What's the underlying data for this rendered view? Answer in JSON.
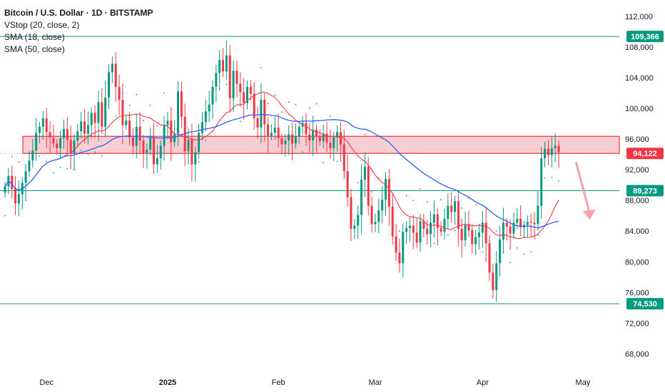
{
  "header": {
    "title": "Bitcoin / U.S. Dollar · 1D · BITSTAMP",
    "indicators": [
      "VStop (20, close, 2)",
      "SMA (18, close)",
      "SMA (50, close)"
    ]
  },
  "colors": {
    "up": "#089981",
    "down": "#f23645",
    "sma18": "#f23645",
    "sma50": "#2962ff",
    "vstop": "#089981",
    "vstop_down": "#f23645",
    "level_line": "#089981",
    "zone_fill": "#f7c6cb",
    "zone_border": "#e8323c",
    "grid_text": "#131722"
  },
  "chart_data": {
    "type": "candlestick",
    "y_axis": {
      "min": 66000,
      "max": 113000,
      "ticks": [
        "112,000",
        "108,000",
        "104,000",
        "100,000",
        "96,000",
        "92,000",
        "88,000",
        "84,000",
        "80,000",
        "76,000",
        "72,000",
        "68,000"
      ],
      "tick_values": [
        112000,
        108000,
        104000,
        100000,
        96000,
        92000,
        88000,
        84000,
        80000,
        76000,
        72000,
        68000
      ]
    },
    "x_axis": {
      "labels": [
        "Dec",
        "2025",
        "Feb",
        "Mar",
        "Apr",
        "May"
      ],
      "label_index": [
        12,
        47,
        79,
        107,
        138,
        167
      ]
    },
    "levels": [
      {
        "value": 109366,
        "label": "109,366"
      },
      {
        "value": 89273,
        "label": "89,273"
      },
      {
        "value": 74530,
        "label": "74,530"
      }
    ],
    "price_tag": {
      "value": 94122,
      "label": "94,122"
    },
    "zone": {
      "low": 94122,
      "high": 96350
    },
    "projection_arrow": {
      "from_index": 165,
      "from_value": 93000,
      "to_index": 169,
      "to_value": 85500
    },
    "closes": [
      89800,
      91200,
      89500,
      87600,
      88800,
      90300,
      91800,
      93200,
      94500,
      96800,
      97600,
      98700,
      96900,
      96200,
      95400,
      94800,
      96100,
      97300,
      95900,
      94100,
      95800,
      97000,
      98300,
      96700,
      97800,
      99400,
      98100,
      100800,
      97600,
      101400,
      104700,
      105800,
      102800,
      101100,
      97800,
      98400,
      96200,
      95100,
      97600,
      95800,
      94200,
      94600,
      96200,
      92700,
      93500,
      95100,
      97800,
      98400,
      95600,
      96700,
      102200,
      98900,
      94400,
      95900,
      92700,
      94300,
      96800,
      98200,
      99600,
      100500,
      102800,
      104600,
      106300,
      104800,
      106900,
      101300,
      104900,
      103200,
      102100,
      100700,
      102800,
      101900,
      98700,
      97500,
      101100,
      97900,
      96400,
      96800,
      97500,
      96100,
      95300,
      95800,
      96600,
      95400,
      96300,
      97600,
      98100,
      96600,
      95800,
      97200,
      96400,
      95700,
      96700,
      95500,
      94800,
      96200,
      96900,
      95300,
      91800,
      88400,
      84300,
      84700,
      86100,
      90700,
      92400,
      87300,
      84900,
      85200,
      86700,
      88100,
      90800,
      87200,
      83300,
      81200,
      79800,
      83900,
      84400,
      84700,
      83800,
      82500,
      85300,
      84300,
      83600,
      85100,
      86200,
      84400,
      83900,
      85600,
      87300,
      86500,
      87900,
      84300,
      82800,
      84900,
      84100,
      82300,
      83200,
      83800,
      85100,
      82400,
      78600,
      76300,
      79800,
      82900,
      85100,
      84600,
      83700,
      85100,
      85600,
      84500,
      84800,
      85200,
      85100,
      84900,
      87300,
      93500,
      94700,
      93900,
      94800,
      95100,
      94300
    ]
  }
}
